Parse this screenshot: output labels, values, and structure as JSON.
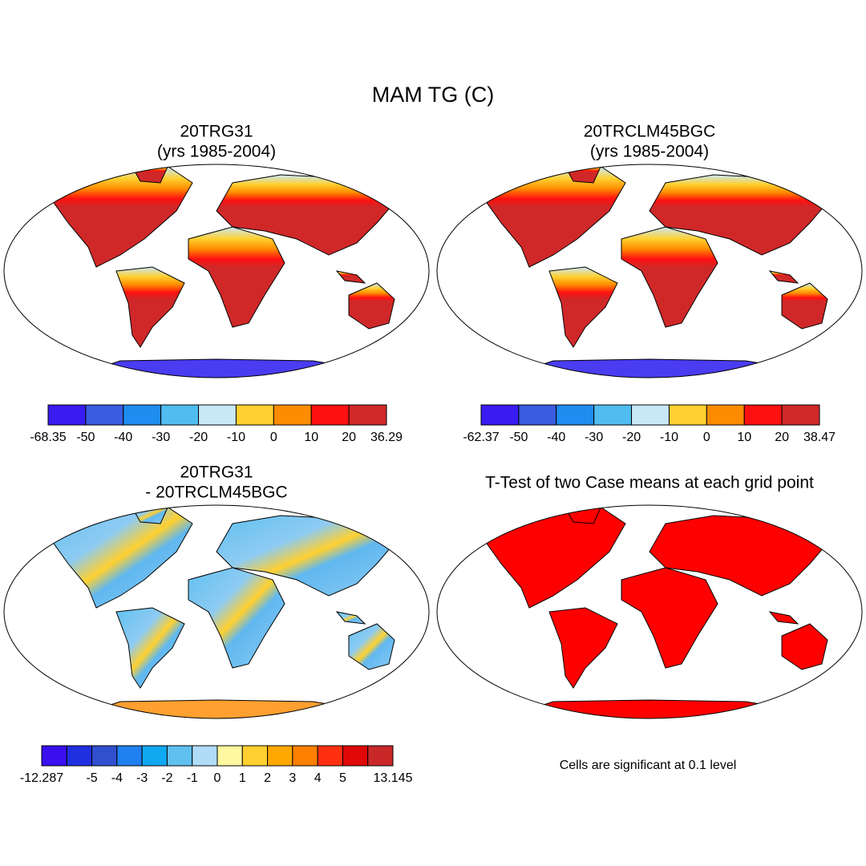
{
  "title": "MAM TG (C)",
  "panels": [
    {
      "title": [
        "20TRG31",
        "(yrs 1985-2004)"
      ],
      "colorbar": {
        "colors": [
          "#3a1cf0",
          "#3a5ce0",
          "#1e8cf0",
          "#50bcf0",
          "#c8e8f8",
          "#ffd030",
          "#ff8c00",
          "#ff1010",
          "#d02828"
        ],
        "labels": [
          -68.35,
          -50,
          -40,
          -30,
          -20,
          -10,
          0,
          10,
          20,
          36.29
        ]
      }
    },
    {
      "title": [
        "20TRCLM45BGC",
        "(yrs 1985-2004)"
      ],
      "colorbar": {
        "colors": [
          "#3a1cf0",
          "#3a5ce0",
          "#1e8cf0",
          "#50bcf0",
          "#c8e8f8",
          "#ffd030",
          "#ff8c00",
          "#ff1010",
          "#d02828"
        ],
        "labels": [
          -62.37,
          -50,
          -40,
          -30,
          -20,
          -10,
          0,
          10,
          20,
          38.47
        ]
      }
    },
    {
      "title": [
        "20TRG31",
        "- 20TRCLM45BGC"
      ],
      "colorbar": {
        "colors": [
          "#3a10f0",
          "#2030e0",
          "#3050d0",
          "#2080f0",
          "#10a8f0",
          "#60c0f0",
          "#b0dcf8",
          "#fff8a0",
          "#ffd030",
          "#ffa800",
          "#ff8000",
          "#ff3010",
          "#e00808",
          "#c82828"
        ],
        "labels": [
          -12.287,
          null,
          -5,
          -4,
          -3,
          -2,
          -1,
          0,
          1,
          2,
          3,
          4,
          5,
          null,
          13.145
        ]
      }
    },
    {
      "title": [
        "T-Test of two Case means at each grid point"
      ],
      "note": "Cells are significant at 0.1 level"
    }
  ]
}
